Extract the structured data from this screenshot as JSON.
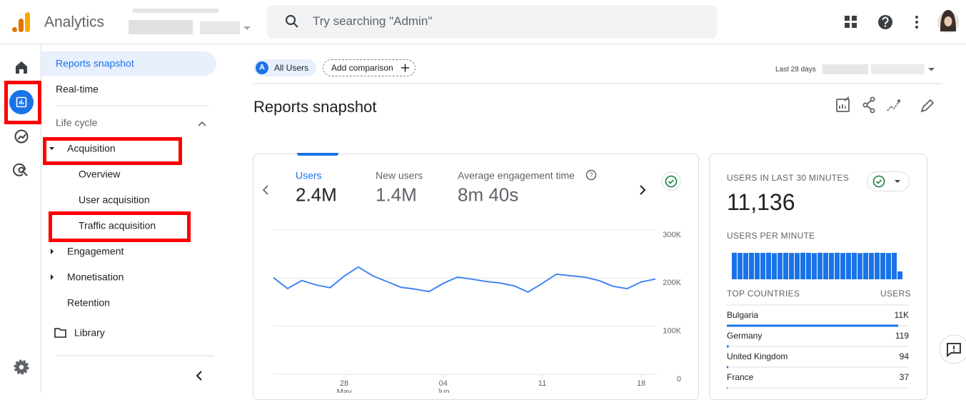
{
  "header": {
    "product": "Analytics",
    "search_placeholder": "Try searching \"Admin\""
  },
  "nav": {
    "top": [
      "Reports snapshot",
      "Real-time"
    ],
    "section": "Life cycle",
    "acquisition": "Acquisition",
    "acquisition_items": [
      "Overview",
      "User acquisition",
      "Traffic acquisition"
    ],
    "more": [
      "Engagement",
      "Monetisation",
      "Retention"
    ],
    "library": "Library"
  },
  "toolbar": {
    "segment_badge": "A",
    "segment": "All Users",
    "add_comparison": "Add comparison",
    "date_range": "Last 28 days"
  },
  "page_title": "Reports snapshot",
  "overview_card": {
    "metrics": [
      {
        "label": "Users",
        "value": "2.4M"
      },
      {
        "label": "New users",
        "value": "1.4M"
      },
      {
        "label": "Average engagement time",
        "value": "8m 40s"
      }
    ],
    "chart": {
      "type": "line",
      "categories": [
        null,
        null,
        null,
        null,
        null,
        "28",
        null,
        null,
        null,
        null,
        null,
        null,
        "04",
        null,
        null,
        null,
        null,
        null,
        null,
        "11",
        null,
        null,
        null,
        null,
        null,
        null,
        "18",
        null
      ],
      "sub_categories": [
        null,
        null,
        null,
        null,
        null,
        "May",
        null,
        null,
        null,
        null,
        null,
        null,
        "Jun",
        null,
        null,
        null,
        null,
        null,
        null,
        null,
        null,
        null,
        null,
        null,
        null,
        null,
        null,
        null
      ],
      "values": [
        201000,
        178000,
        195000,
        186000,
        180000,
        204000,
        223000,
        205000,
        193000,
        181000,
        177000,
        172000,
        189000,
        202000,
        198000,
        193000,
        190000,
        184000,
        171000,
        189000,
        208000,
        205000,
        202000,
        195000,
        183000,
        178000,
        192000,
        198000
      ],
      "color": "#4285f4",
      "ylim": [
        0,
        300000
      ],
      "yticks": [
        0,
        {
          "value": 100000,
          "label": "100K"
        },
        {
          "value": 200000,
          "label": "200K"
        },
        {
          "value": 300000,
          "label": "300K"
        }
      ],
      "grid": true
    }
  },
  "realtime_card": {
    "title": "USERS IN LAST 30 MINUTES",
    "value": "11,136",
    "per_minute_label": "USERS PER MINUTE",
    "per_minute_chart": {
      "type": "bar",
      "values": [
        372,
        370,
        368,
        371,
        370,
        369,
        372,
        366,
        370,
        371,
        369,
        368,
        372,
        370,
        366,
        371,
        370,
        369,
        372,
        368,
        370,
        371,
        366,
        370,
        369,
        372,
        370,
        368,
        371,
        110
      ],
      "color": "#1a73e8",
      "ylim": [
        0,
        400
      ]
    },
    "countries_header": "TOP COUNTRIES",
    "users_header": "USERS",
    "countries": {
      "type": "bar",
      "categories": [
        "Bulgaria",
        "Germany",
        "United Kingdom",
        "France"
      ],
      "values": [
        11000,
        119,
        94,
        37
      ],
      "value_labels": [
        "11K",
        "119",
        "94",
        "37"
      ],
      "color": "#1a73e8"
    }
  }
}
